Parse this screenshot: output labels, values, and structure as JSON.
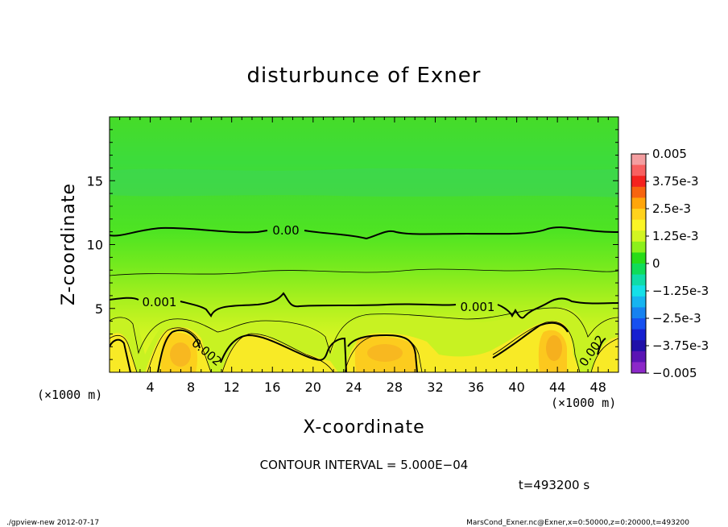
{
  "chart_data": {
    "type": "heatmap",
    "title": "disturbunce of Exner",
    "xlabel": "X-coordinate",
    "ylabel": "Z-coordinate",
    "x_unit": "(×1000 m)",
    "z_unit": "(×1000 m)",
    "xlim": [
      0,
      50
    ],
    "ylim": [
      0,
      20
    ],
    "x_ticks": [
      "4",
      "8",
      "12",
      "16",
      "20",
      "24",
      "28",
      "32",
      "36",
      "40",
      "44",
      "48"
    ],
    "x_tick_values": [
      4,
      8,
      12,
      16,
      20,
      24,
      28,
      32,
      36,
      40,
      44,
      48
    ],
    "y_ticks": [
      "5",
      "10",
      "15"
    ],
    "y_tick_values": [
      5,
      10,
      15
    ],
    "colorbar": {
      "labels": [
        "0.005",
        "3.75e-3",
        "2.5e-3",
        "1.25e-3",
        "0",
        "−1.25e-3",
        "−2.5e-3",
        "−3.75e-3",
        "−0.005"
      ],
      "values": [
        0.005,
        0.00375,
        0.0025,
        0.00125,
        0,
        -0.00125,
        -0.0025,
        -0.00375,
        -0.005
      ],
      "colors": [
        "#f49ea0",
        "#f86060",
        "#f4221e",
        "#f7640f",
        "#ffa50a",
        "#ffd21c",
        "#fbf526",
        "#d2f522",
        "#8cf01c",
        "#28dc18",
        "#10dc58",
        "#10dca8",
        "#14e0e8",
        "#16b4f0",
        "#1682f0",
        "#1650f0",
        "#1620d0",
        "#2010a8",
        "#5a14b4",
        "#8c28c8"
      ]
    },
    "contour_labels": [
      {
        "text": "0.00",
        "x": 20,
        "z": 11.2
      },
      {
        "text": "0.001",
        "x": 6,
        "z": 5.6
      },
      {
        "text": "0.001",
        "x": 35.5,
        "z": 5.3
      },
      {
        "text": "0.002",
        "x": 9.5,
        "z": 1.6
      },
      {
        "text": "0.002",
        "x": 46.5,
        "z": 1.6
      }
    ],
    "contour_interval_text": "CONTOUR INTERVAL = 5.000E−04",
    "time_text": "t=493200 s"
  },
  "footer": {
    "left": "./gpview-new  2012-07-17",
    "right": "MarsCond_Exner.nc@Exner,x=0:50000,z=0:20000,t=493200"
  }
}
